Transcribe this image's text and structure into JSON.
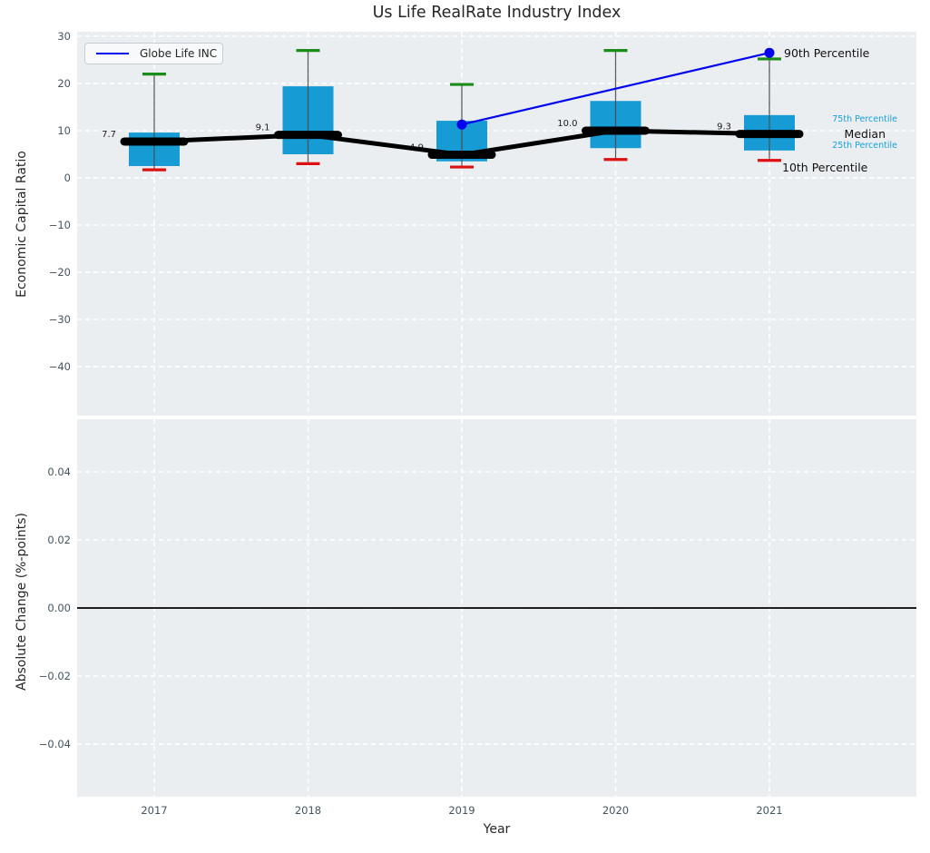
{
  "colors": {
    "plot_bg": "#eaeef0",
    "grid": "#ffffff",
    "box_fill": "#169bd5",
    "whisker": "#4d4d4d",
    "cap_top_green": "#1a8c1a",
    "cap_bottom_red": "#dd1111",
    "median_black": "#000000",
    "globe_line_blue": "#0000ee",
    "tick_color": "#44545f",
    "percentile_label_blue": "#18a0d8",
    "zero_line": "#000000"
  },
  "legend": {
    "label": "Globe Life INC"
  },
  "chart_data": {
    "type": "boxplot+line",
    "title": "Us Life RealRate Industry Index",
    "xlabel": "Year",
    "categories": [
      "2017",
      "2018",
      "2019",
      "2020",
      "2021"
    ],
    "top": {
      "ylabel": "Economic Capital Ratio",
      "ylim": [
        -50,
        31
      ],
      "yticks": [
        30,
        20,
        10,
        0,
        -10,
        -20,
        -30,
        -40
      ],
      "grid": true,
      "series": {
        "p90": [
          22.0,
          27.0,
          19.8,
          27.0,
          25.2
        ],
        "p75": [
          9.6,
          19.4,
          12.1,
          16.3,
          13.3
        ],
        "median": [
          7.7,
          9.1,
          4.9,
          10.0,
          9.3
        ],
        "p25": [
          2.5,
          5.0,
          3.5,
          6.3,
          5.8
        ],
        "p10": [
          1.7,
          3.0,
          2.3,
          3.9,
          3.7
        ]
      },
      "median_labels": [
        "7.7",
        "9.1",
        "4.9",
        "10.0",
        "9.3"
      ],
      "company_line": {
        "name": "Globe Life INC",
        "x": [
          "2019",
          "2021"
        ],
        "y": [
          11.3,
          26.5
        ]
      },
      "right_labels": [
        {
          "text": "90th Percentile",
          "style": "big"
        },
        {
          "text": "75th Percentile",
          "style": "small-blue"
        },
        {
          "text": "Median",
          "style": "big"
        },
        {
          "text": "25th Percentile",
          "style": "small-blue"
        },
        {
          "text": "10th Percentile",
          "style": "big"
        }
      ]
    },
    "bottom": {
      "ylabel": "Absolute Change (%-points)",
      "ylim": [
        -0.0555,
        0.0555
      ],
      "yticks": [
        0.04,
        0.02,
        0.0,
        -0.02,
        -0.04
      ],
      "grid": true,
      "series": [],
      "zero_line": 0.0
    }
  }
}
